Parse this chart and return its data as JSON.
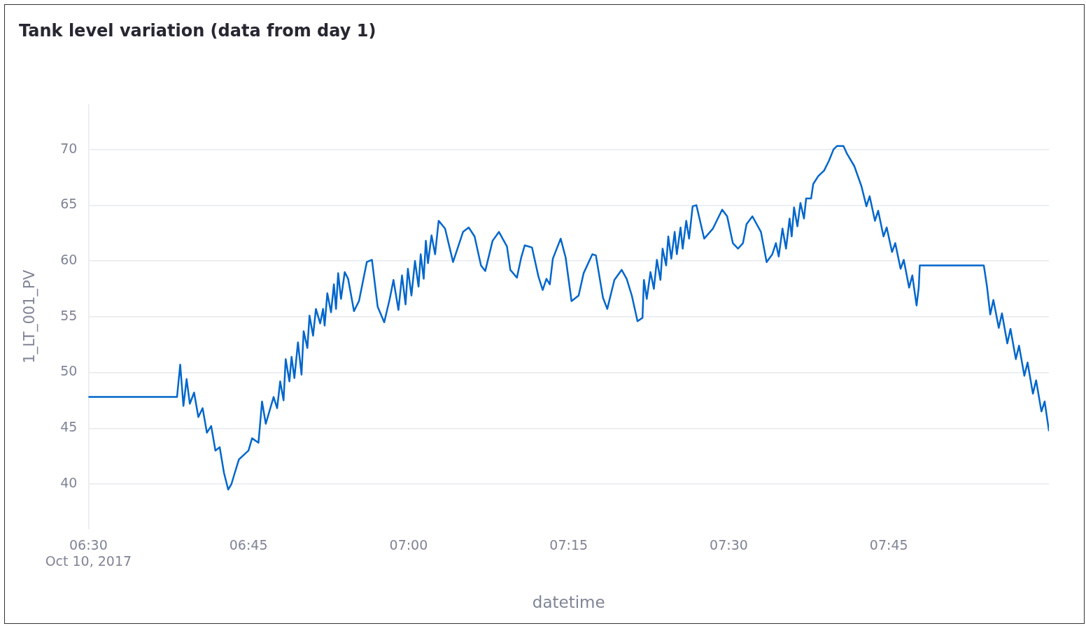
{
  "chart_data": {
    "type": "line",
    "title": "Tank level variation (data from day 1)",
    "xlabel": "datetime",
    "ylabel": "1_LT_001_PV",
    "xlim": [
      "2017-10-10T06:30",
      "2017-10-10T08:00"
    ],
    "xticks": [
      {
        "value": "2017-10-10T06:30",
        "label": "06:30\nOct 10, 2017"
      },
      {
        "value": "2017-10-10T06:45",
        "label": "06:45"
      },
      {
        "value": "2017-10-10T07:00",
        "label": "07:00"
      },
      {
        "value": "2017-10-10T07:15",
        "label": "07:15"
      },
      {
        "value": "2017-10-10T07:30",
        "label": "07:30"
      },
      {
        "value": "2017-10-10T07:45",
        "label": "07:45"
      }
    ],
    "ylim": [
      36,
      74
    ],
    "yticks": [
      40,
      45,
      50,
      55,
      60,
      65,
      70
    ],
    "grid": "y",
    "legend": false,
    "marker": "none",
    "line_style": "solid",
    "x": [
      "2017-10-10T06:30:00",
      "2017-10-10T06:38:18",
      "2017-10-10T06:38:36",
      "2017-10-10T06:38:54",
      "2017-10-10T06:39:12",
      "2017-10-10T06:39:30",
      "2017-10-10T06:39:54",
      "2017-10-10T06:40:18",
      "2017-10-10T06:40:42",
      "2017-10-10T06:41:06",
      "2017-10-10T06:41:30",
      "2017-10-10T06:41:54",
      "2017-10-10T06:42:18",
      "2017-10-10T06:42:42",
      "2017-10-10T06:43:06",
      "2017-10-10T06:43:24",
      "2017-10-10T06:43:39",
      "2017-10-10T06:44:06",
      "2017-10-10T06:45:00",
      "2017-10-10T06:45:20",
      "2017-10-10T06:45:56",
      "2017-10-10T06:46:16",
      "2017-10-10T06:46:37",
      "2017-10-10T06:47:21",
      "2017-10-10T06:47:41",
      "2017-10-10T06:47:58",
      "2017-10-10T06:48:17",
      "2017-10-10T06:48:29",
      "2017-10-10T06:48:50",
      "2017-10-10T06:49:02",
      "2017-10-10T06:49:18",
      "2017-10-10T06:49:38",
      "2017-10-10T06:49:58",
      "2017-10-10T06:50:10",
      "2017-10-10T06:50:31",
      "2017-10-10T06:50:43",
      "2017-10-10T06:51:03",
      "2017-10-10T06:51:19",
      "2017-10-10T06:51:43",
      "2017-10-10T06:51:59",
      "2017-10-10T06:52:08",
      "2017-10-10T06:52:23",
      "2017-10-10T06:52:44",
      "2017-10-10T06:53:00",
      "2017-10-10T06:53:12",
      "2017-10-10T06:53:24",
      "2017-10-10T06:53:40",
      "2017-10-10T06:54:01",
      "2017-10-10T06:54:20",
      "2017-10-10T06:54:53",
      "2017-10-10T06:55:21",
      "2017-10-10T06:56:05",
      "2017-10-10T06:56:34",
      "2017-10-10T06:57:06",
      "2017-10-10T06:57:43",
      "2017-10-10T06:58:14",
      "2017-10-10T06:58:35",
      "2017-10-10T06:59:03",
      "2017-10-10T06:59:23",
      "2017-10-10T06:59:43",
      "2017-10-10T06:59:56",
      "2017-10-10T07:00:16",
      "2017-10-10T07:00:36",
      "2017-10-10T07:00:56",
      "2017-10-10T07:01:08",
      "2017-10-10T07:01:25",
      "2017-10-10T07:01:37",
      "2017-10-10T07:01:49",
      "2017-10-10T07:02:09",
      "2017-10-10T07:02:29",
      "2017-10-10T07:02:49",
      "2017-10-10T07:03:25",
      "2017-10-10T07:04:10",
      "2017-10-10T07:05:06",
      "2017-10-10T07:05:38",
      "2017-10-10T07:06:11",
      "2017-10-10T07:06:47",
      "2017-10-10T07:07:11",
      "2017-10-10T07:07:52",
      "2017-10-10T07:08:28",
      "2017-10-10T07:09:13",
      "2017-10-10T07:09:32",
      "2017-10-10T07:10:09",
      "2017-10-10T07:10:33",
      "2017-10-10T07:10:53",
      "2017-10-10T07:11:34",
      "2017-10-10T07:12:10",
      "2017-10-10T07:12:34",
      "2017-10-10T07:12:55",
      "2017-10-10T07:13:14",
      "2017-10-10T07:13:31",
      "2017-10-10T07:14:15",
      "2017-10-10T07:14:43",
      "2017-10-10T07:15:16",
      "2017-10-10T07:15:56",
      "2017-10-10T07:16:24",
      "2017-10-10T07:17:13",
      "2017-10-10T07:17:33",
      "2017-10-10T07:18:13",
      "2017-10-10T07:18:37",
      "2017-10-10T07:19:17",
      "2017-10-10T07:19:58",
      "2017-10-10T07:20:26",
      "2017-10-10T07:20:55",
      "2017-10-10T07:21:27",
      "2017-10-10T07:21:55",
      "2017-10-10T07:22:03",
      "2017-10-10T07:22:19",
      "2017-10-10T07:22:40",
      "2017-10-10T07:22:59",
      "2017-10-10T07:23:16",
      "2017-10-10T07:23:36",
      "2017-10-10T07:23:48",
      "2017-10-10T07:24:08",
      "2017-10-10T07:24:20",
      "2017-10-10T07:24:37",
      "2017-10-10T07:24:56",
      "2017-10-10T07:25:08",
      "2017-10-10T07:25:29",
      "2017-10-10T07:25:41",
      "2017-10-10T07:26:01",
      "2017-10-10T07:26:17",
      "2017-10-10T07:26:37",
      "2017-10-10T07:26:58",
      "2017-10-10T07:27:42",
      "2017-10-10T07:28:31",
      "2017-10-10T07:29:23",
      "2017-10-10T07:29:51",
      "2017-10-10T07:30:23",
      "2017-10-10T07:30:52",
      "2017-10-10T07:31:20",
      "2017-10-10T07:31:40",
      "2017-10-10T07:32:13",
      "2017-10-10T07:33:01",
      "2017-10-10T07:33:33",
      "2017-10-10T07:34:05",
      "2017-10-10T07:34:25",
      "2017-10-10T07:34:41",
      "2017-10-10T07:35:02",
      "2017-10-10T07:35:22",
      "2017-10-10T07:35:42",
      "2017-10-10T07:35:54",
      "2017-10-10T07:36:07",
      "2017-10-10T07:36:26",
      "2017-10-10T07:36:43",
      "2017-10-10T07:37:03",
      "2017-10-10T07:37:15",
      "2017-10-10T07:37:43",
      "2017-10-10T07:37:55",
      "2017-10-10T07:38:23",
      "2017-10-10T07:38:56",
      "2017-10-10T07:39:24",
      "2017-10-10T07:39:49",
      "2017-10-10T07:40:08",
      "2017-10-10T07:40:45",
      "2017-10-10T07:41:05",
      "2017-10-10T07:41:46",
      "2017-10-10T07:42:26",
      "2017-10-10T07:42:54",
      "2017-10-10T07:43:12",
      "2017-10-10T07:43:42",
      "2017-10-10T07:44:00",
      "2017-10-10T07:44:30",
      "2017-10-10T07:44:48",
      "2017-10-10T07:45:18",
      "2017-10-10T07:45:36",
      "2017-10-10T07:46:06",
      "2017-10-10T07:46:24",
      "2017-10-10T07:46:54",
      "2017-10-10T07:47:12",
      "2017-10-10T07:47:36",
      "2017-10-10T07:47:48",
      "2017-10-10T07:47:54",
      "2017-10-10T07:53:54",
      "2017-10-10T07:54:12",
      "2017-10-10T07:54:30",
      "2017-10-10T07:54:48",
      "2017-10-10T07:55:18",
      "2017-10-10T07:55:36",
      "2017-10-10T07:56:06",
      "2017-10-10T07:56:24",
      "2017-10-10T07:56:54",
      "2017-10-10T07:57:12",
      "2017-10-10T07:57:42",
      "2017-10-10T07:58:00",
      "2017-10-10T07:58:30",
      "2017-10-10T07:58:48",
      "2017-10-10T07:59:18",
      "2017-10-10T07:59:36",
      "2017-10-10T08:00:00"
    ],
    "series": [
      {
        "color": "#0066cc",
        "values": [
          47.8,
          47.8,
          50.7,
          47.0,
          49.4,
          47.2,
          48.2,
          46.0,
          46.8,
          44.6,
          45.2,
          43.0,
          43.3,
          41.0,
          39.5,
          40.0,
          40.8,
          42.2,
          43.0,
          44.1,
          43.7,
          47.4,
          45.4,
          47.8,
          46.8,
          49.2,
          47.5,
          51.2,
          49.2,
          51.4,
          49.5,
          52.7,
          49.8,
          53.7,
          52.2,
          55.1,
          53.3,
          55.7,
          54.4,
          55.7,
          54.2,
          57.1,
          55.4,
          57.9,
          55.7,
          58.9,
          56.6,
          59.0,
          58.4,
          55.5,
          56.4,
          59.9,
          60.1,
          55.9,
          54.5,
          56.6,
          58.3,
          55.6,
          58.7,
          56.1,
          59.3,
          56.9,
          60.0,
          57.7,
          60.6,
          58.4,
          61.8,
          59.8,
          62.3,
          60.6,
          63.6,
          62.9,
          59.9,
          62.6,
          63.0,
          62.2,
          59.6,
          59.1,
          61.8,
          62.6,
          61.3,
          59.2,
          58.5,
          60.3,
          61.4,
          61.2,
          58.6,
          57.4,
          58.4,
          57.9,
          60.2,
          62.0,
          60.3,
          56.4,
          56.9,
          58.9,
          60.6,
          60.5,
          56.7,
          55.7,
          58.3,
          59.2,
          58.4,
          56.9,
          54.6,
          54.9,
          58.3,
          56.6,
          59.0,
          57.5,
          60.1,
          58.3,
          61.1,
          59.6,
          62.2,
          60.2,
          62.6,
          60.6,
          63.0,
          61.1,
          63.6,
          62.0,
          64.9,
          65.0,
          62.0,
          62.9,
          64.6,
          64.0,
          61.6,
          61.1,
          61.6,
          63.3,
          64.0,
          62.6,
          59.9,
          60.6,
          61.6,
          60.4,
          62.9,
          61.1,
          63.8,
          62.2,
          64.8,
          63.1,
          65.2,
          63.8,
          65.6,
          65.6,
          66.9,
          67.6,
          68.1,
          69.0,
          70.0,
          70.3,
          70.3,
          69.6,
          68.5,
          66.7,
          64.9,
          65.8,
          63.6,
          64.5,
          62.2,
          63.0,
          60.8,
          61.6,
          59.3,
          60.1,
          57.6,
          58.7,
          56.0,
          57.6,
          59.6,
          59.6,
          57.7,
          55.2,
          56.5,
          54.0,
          55.3,
          52.6,
          53.9,
          51.2,
          52.4,
          49.7,
          50.9,
          48.1,
          49.3,
          46.5,
          47.4,
          44.8
        ]
      }
    ]
  }
}
